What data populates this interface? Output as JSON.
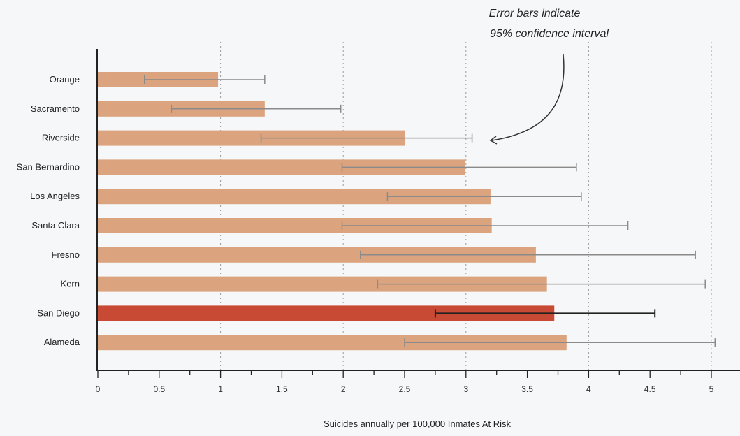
{
  "chart_data": {
    "type": "bar",
    "orientation": "horizontal",
    "categories": [
      "Orange",
      "Sacramento",
      "Riverside",
      "San Bernardino",
      "Los Angeles",
      "Santa Clara",
      "Fresno",
      "Kern",
      "San Diego",
      "Alameda"
    ],
    "values": [
      0.98,
      1.36,
      2.5,
      2.99,
      3.2,
      3.21,
      3.57,
      3.66,
      3.72,
      3.82
    ],
    "ci_low": [
      0.38,
      0.6,
      1.33,
      1.99,
      2.36,
      1.99,
      2.14,
      2.28,
      2.75,
      2.5
    ],
    "ci_high": [
      1.36,
      1.98,
      3.05,
      3.9,
      3.94,
      4.32,
      4.87,
      4.95,
      4.54,
      5.03
    ],
    "highlight": "San Diego",
    "xlabel": "Suicides annually per 100,000 Inmates At Risk",
    "ylabel": "",
    "xlim": [
      0,
      5
    ],
    "xticks": [
      "0",
      "0.5",
      "1",
      "1.5",
      "2",
      "2.5",
      "3",
      "3.5",
      "4",
      "4.5",
      "5"
    ],
    "grid": "vertical dotted at integers",
    "annotation": {
      "line1": "Error bars indicate",
      "line2": "95% confidence interval",
      "points_to": "Riverside"
    },
    "colors": {
      "bar": "#dba47f",
      "highlight_bar": "#c94a34",
      "error_bar": "#8a8a8a",
      "highlight_error_bar": "#222222",
      "axis": "#222222",
      "grid": "#9a9a9a"
    }
  }
}
